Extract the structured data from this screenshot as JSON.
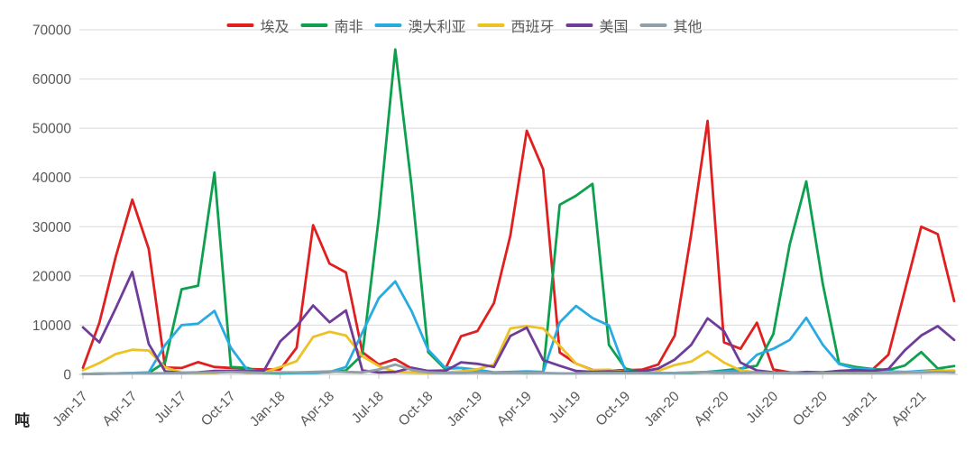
{
  "figure": {
    "ylabel": "吨"
  },
  "chart_data": {
    "type": "line",
    "title": "",
    "xlabel": "",
    "ylabel": "吨",
    "ylim": [
      0,
      70000
    ],
    "y_ticks": [
      0,
      10000,
      20000,
      30000,
      40000,
      50000,
      60000,
      70000
    ],
    "grid": "horizontal",
    "legend_position": "top",
    "axis_color": "#595959",
    "grid_color": "#d9d9d9",
    "axis_line_color": "#c6c6c6",
    "x": [
      "Jan-17",
      "Feb-17",
      "Mar-17",
      "Apr-17",
      "May-17",
      "Jun-17",
      "Jul-17",
      "Aug-17",
      "Sep-17",
      "Oct-17",
      "Nov-17",
      "Dec-17",
      "Jan-18",
      "Feb-18",
      "Mar-18",
      "Apr-18",
      "May-18",
      "Jun-18",
      "Jul-18",
      "Aug-18",
      "Sep-18",
      "Oct-18",
      "Nov-18",
      "Dec-18",
      "Jan-19",
      "Feb-19",
      "Mar-19",
      "Apr-19",
      "May-19",
      "Jun-19",
      "Jul-19",
      "Aug-19",
      "Sep-19",
      "Oct-19",
      "Nov-19",
      "Dec-19",
      "Jan-20",
      "Feb-20",
      "Mar-20",
      "Apr-20",
      "May-20",
      "Jun-20",
      "Jul-20",
      "Aug-20",
      "Sep-20",
      "Oct-20",
      "Nov-20",
      "Dec-20",
      "Jan-21",
      "Feb-21",
      "Mar-21",
      "Apr-21",
      "May-21",
      "Jun-21"
    ],
    "tick_labels": [
      "Jan-17",
      "Apr-17",
      "Jul-17",
      "Oct-17",
      "Jan-18",
      "Apr-18",
      "Jul-18",
      "Oct-18",
      "Jan-19",
      "Apr-19",
      "Jul-19",
      "Oct-19",
      "Jan-20",
      "Apr-20",
      "Jul-20",
      "Oct-20",
      "Jan-21",
      "Apr-21"
    ],
    "series": [
      {
        "id": "egypt",
        "name": "埃及",
        "color": "#e02020",
        "values": [
          1350,
          10500,
          24000,
          35500,
          25500,
          1400,
          1300,
          2500,
          1500,
          1300,
          1100,
          1000,
          1000,
          5400,
          30300,
          22500,
          20700,
          4500,
          2000,
          3100,
          1200,
          700,
          800,
          7750,
          8800,
          14500,
          28200,
          49500,
          41650,
          4450,
          2200,
          900,
          850,
          850,
          950,
          2000,
          7900,
          28500,
          51500,
          6500,
          5200,
          10500,
          1000,
          400,
          300,
          300,
          700,
          800,
          900,
          4000,
          17000,
          30000,
          28500,
          14900
        ]
      },
      {
        "id": "south-africa",
        "name": "南非",
        "color": "#0ea04e",
        "values": [
          100,
          150,
          200,
          250,
          300,
          2500,
          17300,
          18000,
          41000,
          1500,
          1300,
          300,
          200,
          300,
          400,
          500,
          800,
          4000,
          32000,
          66000,
          38000,
          4500,
          1200,
          1300,
          500,
          300,
          400,
          300,
          400,
          34450,
          36300,
          38700,
          6000,
          1200,
          400,
          300,
          300,
          300,
          500,
          800,
          1200,
          1800,
          8200,
          26400,
          39200,
          18500,
          2200,
          1500,
          1100,
          900,
          1800,
          4550,
          1200,
          1700
        ]
      },
      {
        "id": "australia",
        "name": "澳大利亚",
        "color": "#29abe2",
        "values": [
          100,
          100,
          200,
          300,
          400,
          6000,
          10000,
          10300,
          12900,
          5400,
          900,
          500,
          300,
          300,
          300,
          500,
          1500,
          8500,
          15500,
          18900,
          12800,
          5000,
          1450,
          1300,
          950,
          400,
          500,
          600,
          500,
          10550,
          13900,
          11450,
          9950,
          700,
          350,
          250,
          300,
          400,
          500,
          600,
          800,
          4000,
          5200,
          7000,
          11500,
          6050,
          2100,
          1200,
          1000,
          600,
          500,
          700,
          900,
          600
        ]
      },
      {
        "id": "spain",
        "name": "西班牙",
        "color": "#ecc224",
        "values": [
          850,
          2300,
          4150,
          5000,
          4850,
          1400,
          400,
          300,
          300,
          700,
          350,
          350,
          1500,
          2700,
          7600,
          8650,
          7900,
          3700,
          1700,
          500,
          400,
          300,
          400,
          600,
          1050,
          2000,
          9350,
          9800,
          9350,
          5800,
          2200,
          850,
          950,
          500,
          400,
          700,
          1900,
          2600,
          4700,
          2400,
          800,
          400,
          400,
          300,
          400,
          300,
          300,
          300,
          300,
          400,
          400,
          500,
          700,
          800
        ]
      },
      {
        "id": "usa",
        "name": "美国",
        "color": "#6f3d99",
        "values": [
          9550,
          6500,
          13500,
          20800,
          6200,
          600,
          300,
          400,
          700,
          700,
          600,
          700,
          6700,
          9800,
          14000,
          10600,
          13000,
          800,
          400,
          500,
          1350,
          700,
          600,
          2450,
          2150,
          1500,
          7800,
          9500,
          2900,
          1750,
          700,
          500,
          600,
          500,
          600,
          1200,
          3000,
          6000,
          11400,
          8800,
          2400,
          800,
          400,
          300,
          500,
          400,
          700,
          900,
          700,
          1100,
          4900,
          7900,
          9800,
          7000
        ]
      },
      {
        "id": "other",
        "name": "其他",
        "color": "#8fa0aa",
        "values": [
          100,
          150,
          200,
          250,
          200,
          250,
          300,
          350,
          400,
          500,
          400,
          300,
          400,
          400,
          500,
          600,
          500,
          400,
          1000,
          2000,
          900,
          400,
          300,
          300,
          400,
          300,
          300,
          300,
          300,
          200,
          200,
          300,
          300,
          300,
          300,
          300,
          300,
          400,
          400,
          300,
          300,
          400,
          300,
          300,
          200,
          300,
          300,
          300,
          300,
          300,
          400,
          400,
          500,
          400
        ]
      }
    ]
  }
}
